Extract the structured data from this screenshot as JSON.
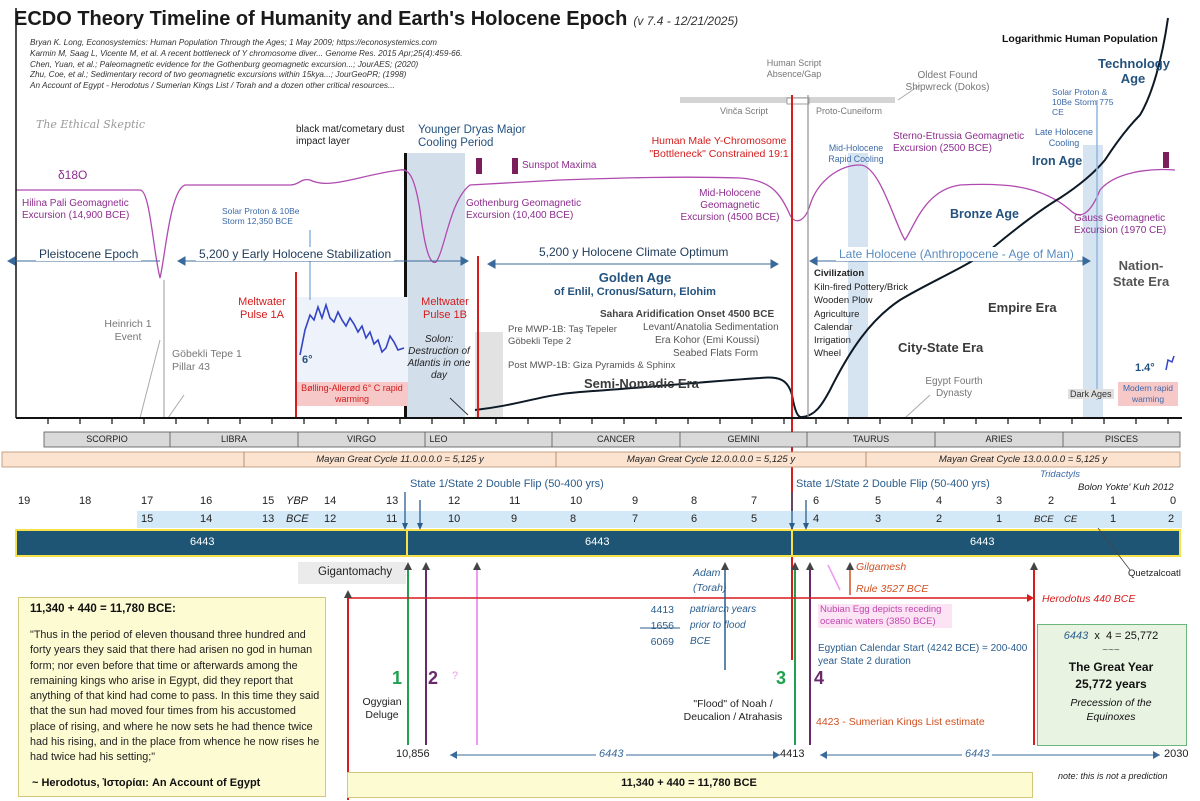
{
  "header": {
    "title": "ECDO Theory Timeline of Humanity and Earth's Holocene Epoch",
    "version": "(v 7.4 - 12/21/2025)",
    "references": [
      "Bryan K. Long, Econosystemics: Human Population Through the Ages; 1 May 2009; https://econosystemics.com",
      "Karmin M, Saag L, Vicente M, et al. A recent bottleneck of Y chromosome diver... Genome Res. 2015 Apr;25(4):459-66.",
      "Chen, Yuan, et al.; Paleomagnetic evidence for the Gothenburg geomagnetic excursion...; JourAES; (2020)",
      "Zhu, Coe, et al.; Sedimentary record of two geomagnetic excursions within 15kya...; JourGeoPR; (1998)",
      "An Account of Egypt - Herodotus / Sumerian Kings List / Torah and a dozen other critical resources..."
    ],
    "watermark": "The Ethical Skeptic"
  },
  "chart_labels": {
    "log_population": "Logarithmic Human Population",
    "technology_age": "Technology Age",
    "delta18o": "δ18O",
    "hilina": "Hilina Pali Geomagnetic Excursion (14,900 BCE)",
    "solar_12350": "Solar Proton & 10Be Storm 12,350 BCE",
    "black_mat": "black mat/cometary dust impact layer",
    "younger_dryas": "Younger Dryas Major Cooling Period",
    "sunspot": "Sunspot Maxima",
    "gothenburg": "Gothenburg Geomagnetic Excursion (10,400 BCE)",
    "y_chrom": "Human Male Y-Chromosome \"Bottleneck\" Constrained 19:1",
    "midholo_geomag": "Mid-Holocene Geomagnetic Excursion (4500 BCE)",
    "human_script": "Human Script Absence/Gap",
    "vinca": "Vinča Script",
    "proto_cuneiform": "Proto-Cuneiform",
    "oldest_shipwreck": "Oldest Found Shipwreck (Dokos)",
    "midholo_cooling": "Mid-Holocene Rapid Cooling",
    "sterno": "Sterno-Etrussia Geomagnetic Excursion (2500 BCE)",
    "solar_775": "Solar Proton & 10Be Storm 775 CE",
    "late_holo_cooling": "Late Holocene Cooling",
    "iron_age": "Iron Age",
    "bronze_age": "Bronze Age",
    "gauss": "Gauss Geomagnetic Excursion (1970 CE)",
    "pleistocene": "Pleistocene Epoch",
    "early_holo": "5,200 y Early Holocene Stabilization",
    "holo_optimum": "5,200 y Holocene Climate Optimum",
    "late_holo": "Late Holocene (Anthropocene - Age of Man)",
    "nation_state": "Nation-State Era",
    "golden_age_1": "Golden Age",
    "golden_age_2": "of Enlil, Cronus/Saturn, Elohim",
    "sahara": "Sahara Aridification Onset 4500 BCE",
    "levant": "Levant/Anatolia Sedimentation",
    "era_kohor": "Era Kohor (Emi Koussi)",
    "seabed": "Seabed Flats Form",
    "civilization": "Civilization",
    "civ_items": [
      "Kiln-fired Pottery/Brick",
      "Wooden Plow",
      "Agriculture",
      "Calendar",
      "Irrigation",
      "Wheel"
    ],
    "empire_era": "Empire Era",
    "city_state_era": "City-State Era",
    "semi_nomadic": "Semi-Nomadic Era",
    "meltwater_1a": "Meltwater Pulse 1A",
    "meltwater_1b": "Meltwater Pulse 1B",
    "six_deg": "6°",
    "bolling": "Bølling-Allerød 6° C rapid warming",
    "heinrich": "Heinrich 1 Event",
    "gobekli_1": "Göbekli Tepe 1 Pillar 43",
    "solon": "Solon: Destruction of Atlantis in one day",
    "pre_mwp": "Pre MWP-1B: Taş Tepeler Göbekli Tepe 2",
    "post_mwp": "Post MWP-1B: Giza Pyramids & Sphinx",
    "egypt_fourth": "Egypt Fourth Dynasty",
    "dark_ages": "Dark Ages",
    "one_four": "1.4°",
    "modern_warming": "Modern rapid warming"
  },
  "zodiac": [
    "SCORPIO",
    "LIBRA",
    "VIRGO",
    "LEO",
    "CANCER",
    "GEMINI",
    "TAURUS",
    "ARIES",
    "PISCES"
  ],
  "mayan": [
    "Mayan Great Cycle 11.0.0.0.0 = 5,125 y",
    "Mayan Great Cycle 12.0.0.0.0 = 5,125 y",
    "Mayan Great Cycle 13.0.0.0.0 = 5,125 y"
  ],
  "tridactyls": "Tridactyls",
  "bolon": "Bolon Yokte' Kuh 2012",
  "flip_label": "State 1/State 2 Double Flip (50-400 yrs)",
  "ybp": [
    "19",
    "18",
    "17",
    "16",
    "15",
    "14",
    "13",
    "12",
    "11",
    "10",
    "9",
    "8",
    "7",
    "6",
    "5",
    "4",
    "3",
    "2",
    "1",
    "0"
  ],
  "ybp_label": "YBP",
  "bce": [
    "15",
    "14",
    "13",
    "12",
    "11",
    "10",
    "9",
    "8",
    "7",
    "6",
    "5",
    "4",
    "3",
    "2",
    "1"
  ],
  "bce_label": "BCE",
  "ce_label": "CE",
  "ce": [
    "1",
    "2"
  ],
  "cycle_labels": [
    "6443",
    "6443",
    "6443"
  ],
  "lower": {
    "gigantomachy": "Gigantomachy",
    "quetzalcoatl": "Quetzalcoatl",
    "gilgamesh": "Gilgamesh",
    "gilg_rule": "Rule 3527 BCE",
    "adam": "Adam (Torah)",
    "herodotus_440": "Herodotus 440 BCE",
    "nubian": "Nubian Egg depicts receding oceanic waters (3850 BCE)",
    "patriarch_nums": [
      "4413",
      "1656",
      "6069"
    ],
    "patriarch_text": [
      "patriarch years",
      "prior to flood",
      "BCE"
    ],
    "egypt_cal": "Egyptian Calendar Start (4242 BCE) = 200-400 year State 2 duration",
    "ogygian": "Ogygian Deluge",
    "flood_noah": "\"Flood\" of Noah / Deucalion / Atrahasis",
    "sumerian": "4423 - Sumerian Kings List estimate",
    "big_nums": [
      "1",
      "2",
      "3",
      "4"
    ],
    "question": "?",
    "dates": [
      "10,856",
      "4413",
      "2030"
    ],
    "spans": [
      "6443",
      "6443",
      "6443"
    ],
    "not_prediction": "note: this is not a prediction",
    "sum_box": "11,340 + 440 = 11,780 BCE"
  },
  "herodotus": {
    "heading": "11,340 + 440 = 11,780 BCE:",
    "quote": "\"Thus in the period of eleven thousand three hundred and forty years they said that there had arisen no god in human form; nor even before that time or afterwards among the remaining kings who arise in Egypt, did they report that anything of that kind had come to pass. In this time they said that the sun had moved four times from his accustomed place of rising, and where he now sets he had thence twice had his rising, and in the place from whence he now rises he had twice had his setting;\"",
    "attribution": "~ Herodotus, Ἱστορίαι: An Account of Egypt"
  },
  "great_year": {
    "eq_a": "6443",
    "eq_op": "x",
    "eq_b": "4",
    "eq_result": "= 25,772",
    "approx": "~~~",
    "title": "The Great Year",
    "years": "25,772 years",
    "sub": "Precession of the Equinoxes"
  }
}
